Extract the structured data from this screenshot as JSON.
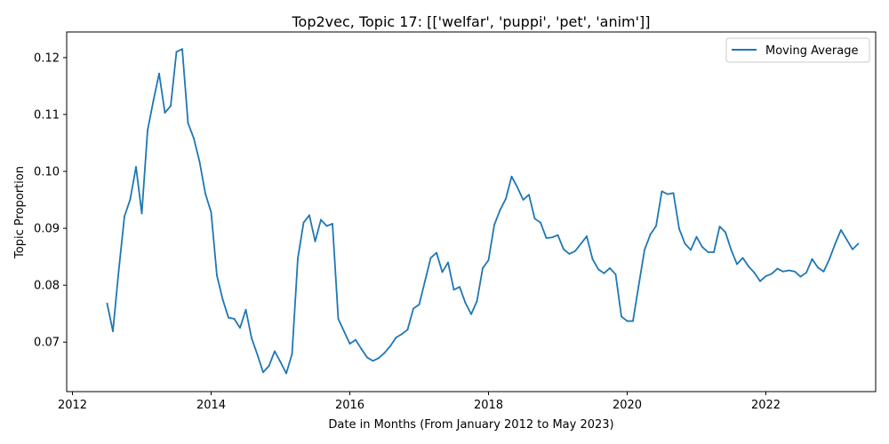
{
  "chart_data": {
    "type": "line",
    "title": "Top2vec, Topic 17: [['welfar', 'puppi', 'pet', 'anim']]",
    "xlabel": "Date in Months (From January 2012 to May 2023)",
    "ylabel": "Topic Proportion",
    "x_ticks": [
      "2012",
      "2014",
      "2016",
      "2018",
      "2020",
      "2022"
    ],
    "y_ticks": [
      "0.07",
      "0.08",
      "0.09",
      "0.10",
      "0.11",
      "0.12"
    ],
    "xlim": [
      "2011-12",
      "2023-08"
    ],
    "ylim": [
      0.0613,
      0.1245
    ],
    "grid": false,
    "legend_position": "upper right",
    "series": [
      {
        "name": "Moving Average",
        "color": "#1f77b4",
        "x": [
          "2012-07",
          "2012-08",
          "2012-09",
          "2012-10",
          "2012-11",
          "2012-12",
          "2013-01",
          "2013-02",
          "2013-03",
          "2013-04",
          "2013-05",
          "2013-06",
          "2013-07",
          "2013-08",
          "2013-09",
          "2013-10",
          "2013-11",
          "2013-12",
          "2014-01",
          "2014-02",
          "2014-03",
          "2014-04",
          "2014-05",
          "2014-06",
          "2014-07",
          "2014-08",
          "2014-09",
          "2014-10",
          "2014-11",
          "2014-12",
          "2015-01",
          "2015-02",
          "2015-03",
          "2015-04",
          "2015-05",
          "2015-06",
          "2015-07",
          "2015-08",
          "2015-09",
          "2015-10",
          "2015-11",
          "2015-12",
          "2016-01",
          "2016-02",
          "2016-03",
          "2016-04",
          "2016-05",
          "2016-06",
          "2016-07",
          "2016-08",
          "2016-09",
          "2016-10",
          "2016-11",
          "2016-12",
          "2017-01",
          "2017-02",
          "2017-03",
          "2017-04",
          "2017-05",
          "2017-06",
          "2017-07",
          "2017-08",
          "2017-09",
          "2017-10",
          "2017-11",
          "2017-12",
          "2018-01",
          "2018-02",
          "2018-03",
          "2018-04",
          "2018-05",
          "2018-06",
          "2018-07",
          "2018-08",
          "2018-09",
          "2018-10",
          "2018-11",
          "2018-12",
          "2019-01",
          "2019-02",
          "2019-03",
          "2019-04",
          "2019-05",
          "2019-06",
          "2019-07",
          "2019-08",
          "2019-09",
          "2019-10",
          "2019-11",
          "2019-12",
          "2020-01",
          "2020-02",
          "2020-03",
          "2020-04",
          "2020-05",
          "2020-06",
          "2020-07",
          "2020-08",
          "2020-09",
          "2020-10",
          "2020-11",
          "2020-12",
          "2021-01",
          "2021-02",
          "2021-03",
          "2021-04",
          "2021-05",
          "2021-06",
          "2021-07",
          "2021-08",
          "2021-09",
          "2021-10",
          "2021-11",
          "2021-12",
          "2022-01",
          "2022-02",
          "2022-03",
          "2022-04",
          "2022-05",
          "2022-06",
          "2022-07",
          "2022-08",
          "2022-09",
          "2022-10",
          "2022-11",
          "2022-12",
          "2023-01",
          "2023-02",
          "2023-03",
          "2023-04",
          "2023-05"
        ],
        "y": [
          0.0768,
          0.0719,
          0.0825,
          0.0921,
          0.0951,
          0.1008,
          0.0926,
          0.1072,
          0.1124,
          0.1172,
          0.1103,
          0.1115,
          0.121,
          0.1215,
          0.1085,
          0.1058,
          0.1017,
          0.0961,
          0.0928,
          0.0817,
          0.0775,
          0.0743,
          0.0741,
          0.0725,
          0.0757,
          0.0707,
          0.0678,
          0.0647,
          0.0658,
          0.0684,
          0.0665,
          0.0645,
          0.0679,
          0.0847,
          0.091,
          0.0923,
          0.0877,
          0.0915,
          0.0904,
          0.0908,
          0.0741,
          0.0719,
          0.0697,
          0.0704,
          0.0688,
          0.0673,
          0.0667,
          0.0672,
          0.0681,
          0.0693,
          0.0708,
          0.0714,
          0.0722,
          0.0759,
          0.0766,
          0.0807,
          0.0848,
          0.0857,
          0.0823,
          0.084,
          0.0792,
          0.0797,
          0.0769,
          0.0749,
          0.0772,
          0.083,
          0.0844,
          0.0906,
          0.0932,
          0.0952,
          0.0991,
          0.0972,
          0.095,
          0.0959,
          0.0917,
          0.091,
          0.0883,
          0.0884,
          0.0888,
          0.0863,
          0.0855,
          0.086,
          0.0873,
          0.0886,
          0.0846,
          0.0828,
          0.0821,
          0.083,
          0.0819,
          0.0745,
          0.0737,
          0.0737,
          0.08,
          0.0862,
          0.0889,
          0.0904,
          0.0965,
          0.096,
          0.0962,
          0.0899,
          0.0873,
          0.0862,
          0.0885,
          0.0867,
          0.0858,
          0.0858,
          0.0903,
          0.0893,
          0.0862,
          0.0837,
          0.0848,
          0.0833,
          0.0822,
          0.0807,
          0.0816,
          0.082,
          0.0829,
          0.0824,
          0.0826,
          0.0824,
          0.0815,
          0.0822,
          0.0846,
          0.0831,
          0.0824,
          0.0846,
          0.0873,
          0.0897,
          0.088,
          0.0863,
          0.0873
        ]
      }
    ]
  }
}
